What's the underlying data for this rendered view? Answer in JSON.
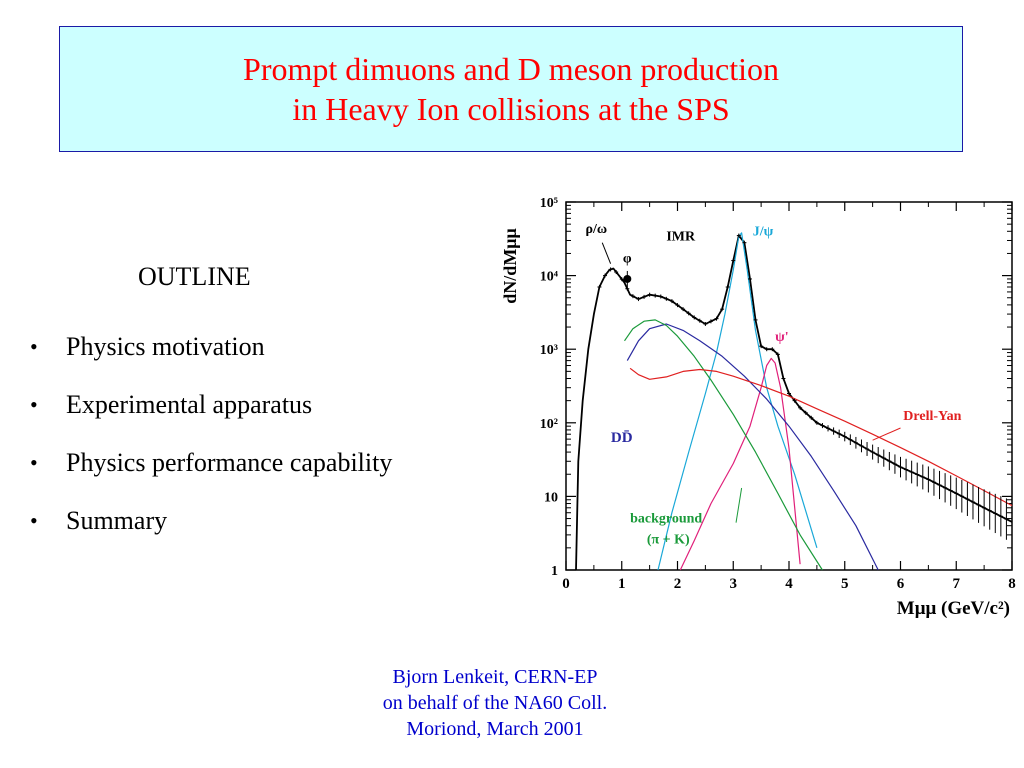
{
  "title": {
    "line1": "Prompt dimuons and D meson production",
    "line2": "in Heavy Ion collisions at the SPS"
  },
  "outline": {
    "heading": "OUTLINE",
    "bullet_glyph": "•",
    "items": [
      "Physics motivation",
      "Experimental apparatus",
      "Physics performance capability",
      "Summary"
    ]
  },
  "footer": {
    "line1": "Bjorn Lenkeit, CERN-EP",
    "line2": "on behalf of the NA60 Coll.",
    "line3": "Moriond, March 2001"
  },
  "chart_data": {
    "type": "line",
    "yscale": "log",
    "xlim": [
      0,
      8
    ],
    "ylim": [
      1,
      100000
    ],
    "xlabel": "Mμμ (GeV/c²)",
    "ylabel": "dN/dMμμ",
    "x_ticks": [
      "0",
      "1",
      "2",
      "3",
      "4",
      "5",
      "6",
      "7",
      "8"
    ],
    "y_ticks": [
      "1",
      "10",
      "10²",
      "10³",
      "10⁴",
      "10⁵"
    ],
    "annotations": {
      "rho_omega": "ρ/ω",
      "phi": "φ",
      "imr": "IMR",
      "jpsi": "J/ψ",
      "psi_prime": "ψ'",
      "dd": "DD̄",
      "drell_yan": "Drell-Yan",
      "background": "background",
      "background_sub": "(π + K)"
    },
    "colors": {
      "total": "#000000",
      "dd": "#2a2aa0",
      "background": "#1a9a3a",
      "jpsi": "#1aa8d8",
      "psi_prime": "#e0207a",
      "drell_yan": "#e02020"
    },
    "series": [
      {
        "name": "total",
        "x": [
          0.18,
          0.22,
          0.3,
          0.4,
          0.5,
          0.6,
          0.7,
          0.78,
          0.85,
          0.95,
          1.05,
          1.15,
          1.3,
          1.5,
          1.7,
          1.9,
          2.1,
          2.3,
          2.5,
          2.7,
          2.8,
          2.9,
          3.0,
          3.1,
          3.2,
          3.3,
          3.4,
          3.5,
          3.6,
          3.7,
          3.8,
          3.9,
          4.0,
          4.2,
          4.5,
          5.0,
          5.5,
          6.0,
          6.5,
          7.0,
          7.5,
          8.0
        ],
        "y": [
          1,
          30,
          200,
          1000,
          3000,
          7000,
          10000,
          12000,
          12500,
          10000,
          8000,
          5500,
          4800,
          5500,
          5200,
          4500,
          3500,
          2700,
          2200,
          2600,
          3500,
          7000,
          16000,
          35000,
          28000,
          9000,
          2500,
          1100,
          1000,
          1000,
          850,
          400,
          250,
          160,
          100,
          65,
          40,
          25,
          17,
          11,
          7,
          4.5
        ]
      },
      {
        "name": "J/ψ",
        "x": [
          1.65,
          1.9,
          2.2,
          2.5,
          2.7,
          2.85,
          3.0,
          3.1,
          3.15,
          3.25,
          3.4,
          3.6,
          3.8,
          4.1,
          4.5
        ],
        "y": [
          1,
          6,
          40,
          250,
          900,
          3000,
          12000,
          34000,
          38000,
          12000,
          1800,
          300,
          90,
          20,
          2
        ]
      },
      {
        "name": "ψ'",
        "x": [
          2.05,
          2.3,
          2.6,
          3.0,
          3.3,
          3.5,
          3.6,
          3.68,
          3.75,
          3.85,
          4.0,
          4.2
        ],
        "y": [
          1,
          2.5,
          8,
          28,
          90,
          300,
          600,
          750,
          650,
          300,
          45,
          1.2
        ]
      },
      {
        "name": "DD̄",
        "x": [
          1.1,
          1.3,
          1.5,
          1.8,
          2.1,
          2.4,
          2.8,
          3.2,
          3.6,
          4.0,
          4.4,
          4.8,
          5.2,
          5.6
        ],
        "y": [
          700,
          1300,
          1900,
          2200,
          1800,
          1300,
          800,
          430,
          210,
          90,
          35,
          12,
          4,
          1
        ]
      },
      {
        "name": "background (π + K)",
        "x": [
          1.05,
          1.2,
          1.4,
          1.6,
          1.8,
          2.0,
          2.3,
          2.6,
          3.0,
          3.4,
          3.8,
          4.2,
          4.6
        ],
        "y": [
          1300,
          1900,
          2400,
          2500,
          2100,
          1500,
          800,
          380,
          130,
          40,
          11,
          3,
          1
        ]
      },
      {
        "name": "Drell-Yan",
        "x": [
          1.15,
          1.3,
          1.5,
          1.8,
          2.1,
          2.4,
          2.7,
          3.0,
          3.5,
          4.0,
          4.5,
          5.0,
          5.5,
          6.0,
          6.5,
          7.0,
          7.5,
          8.0
        ],
        "y": [
          550,
          450,
          390,
          420,
          500,
          530,
          500,
          430,
          320,
          230,
          155,
          105,
          70,
          46,
          30,
          19,
          12,
          7.5
        ]
      }
    ]
  }
}
